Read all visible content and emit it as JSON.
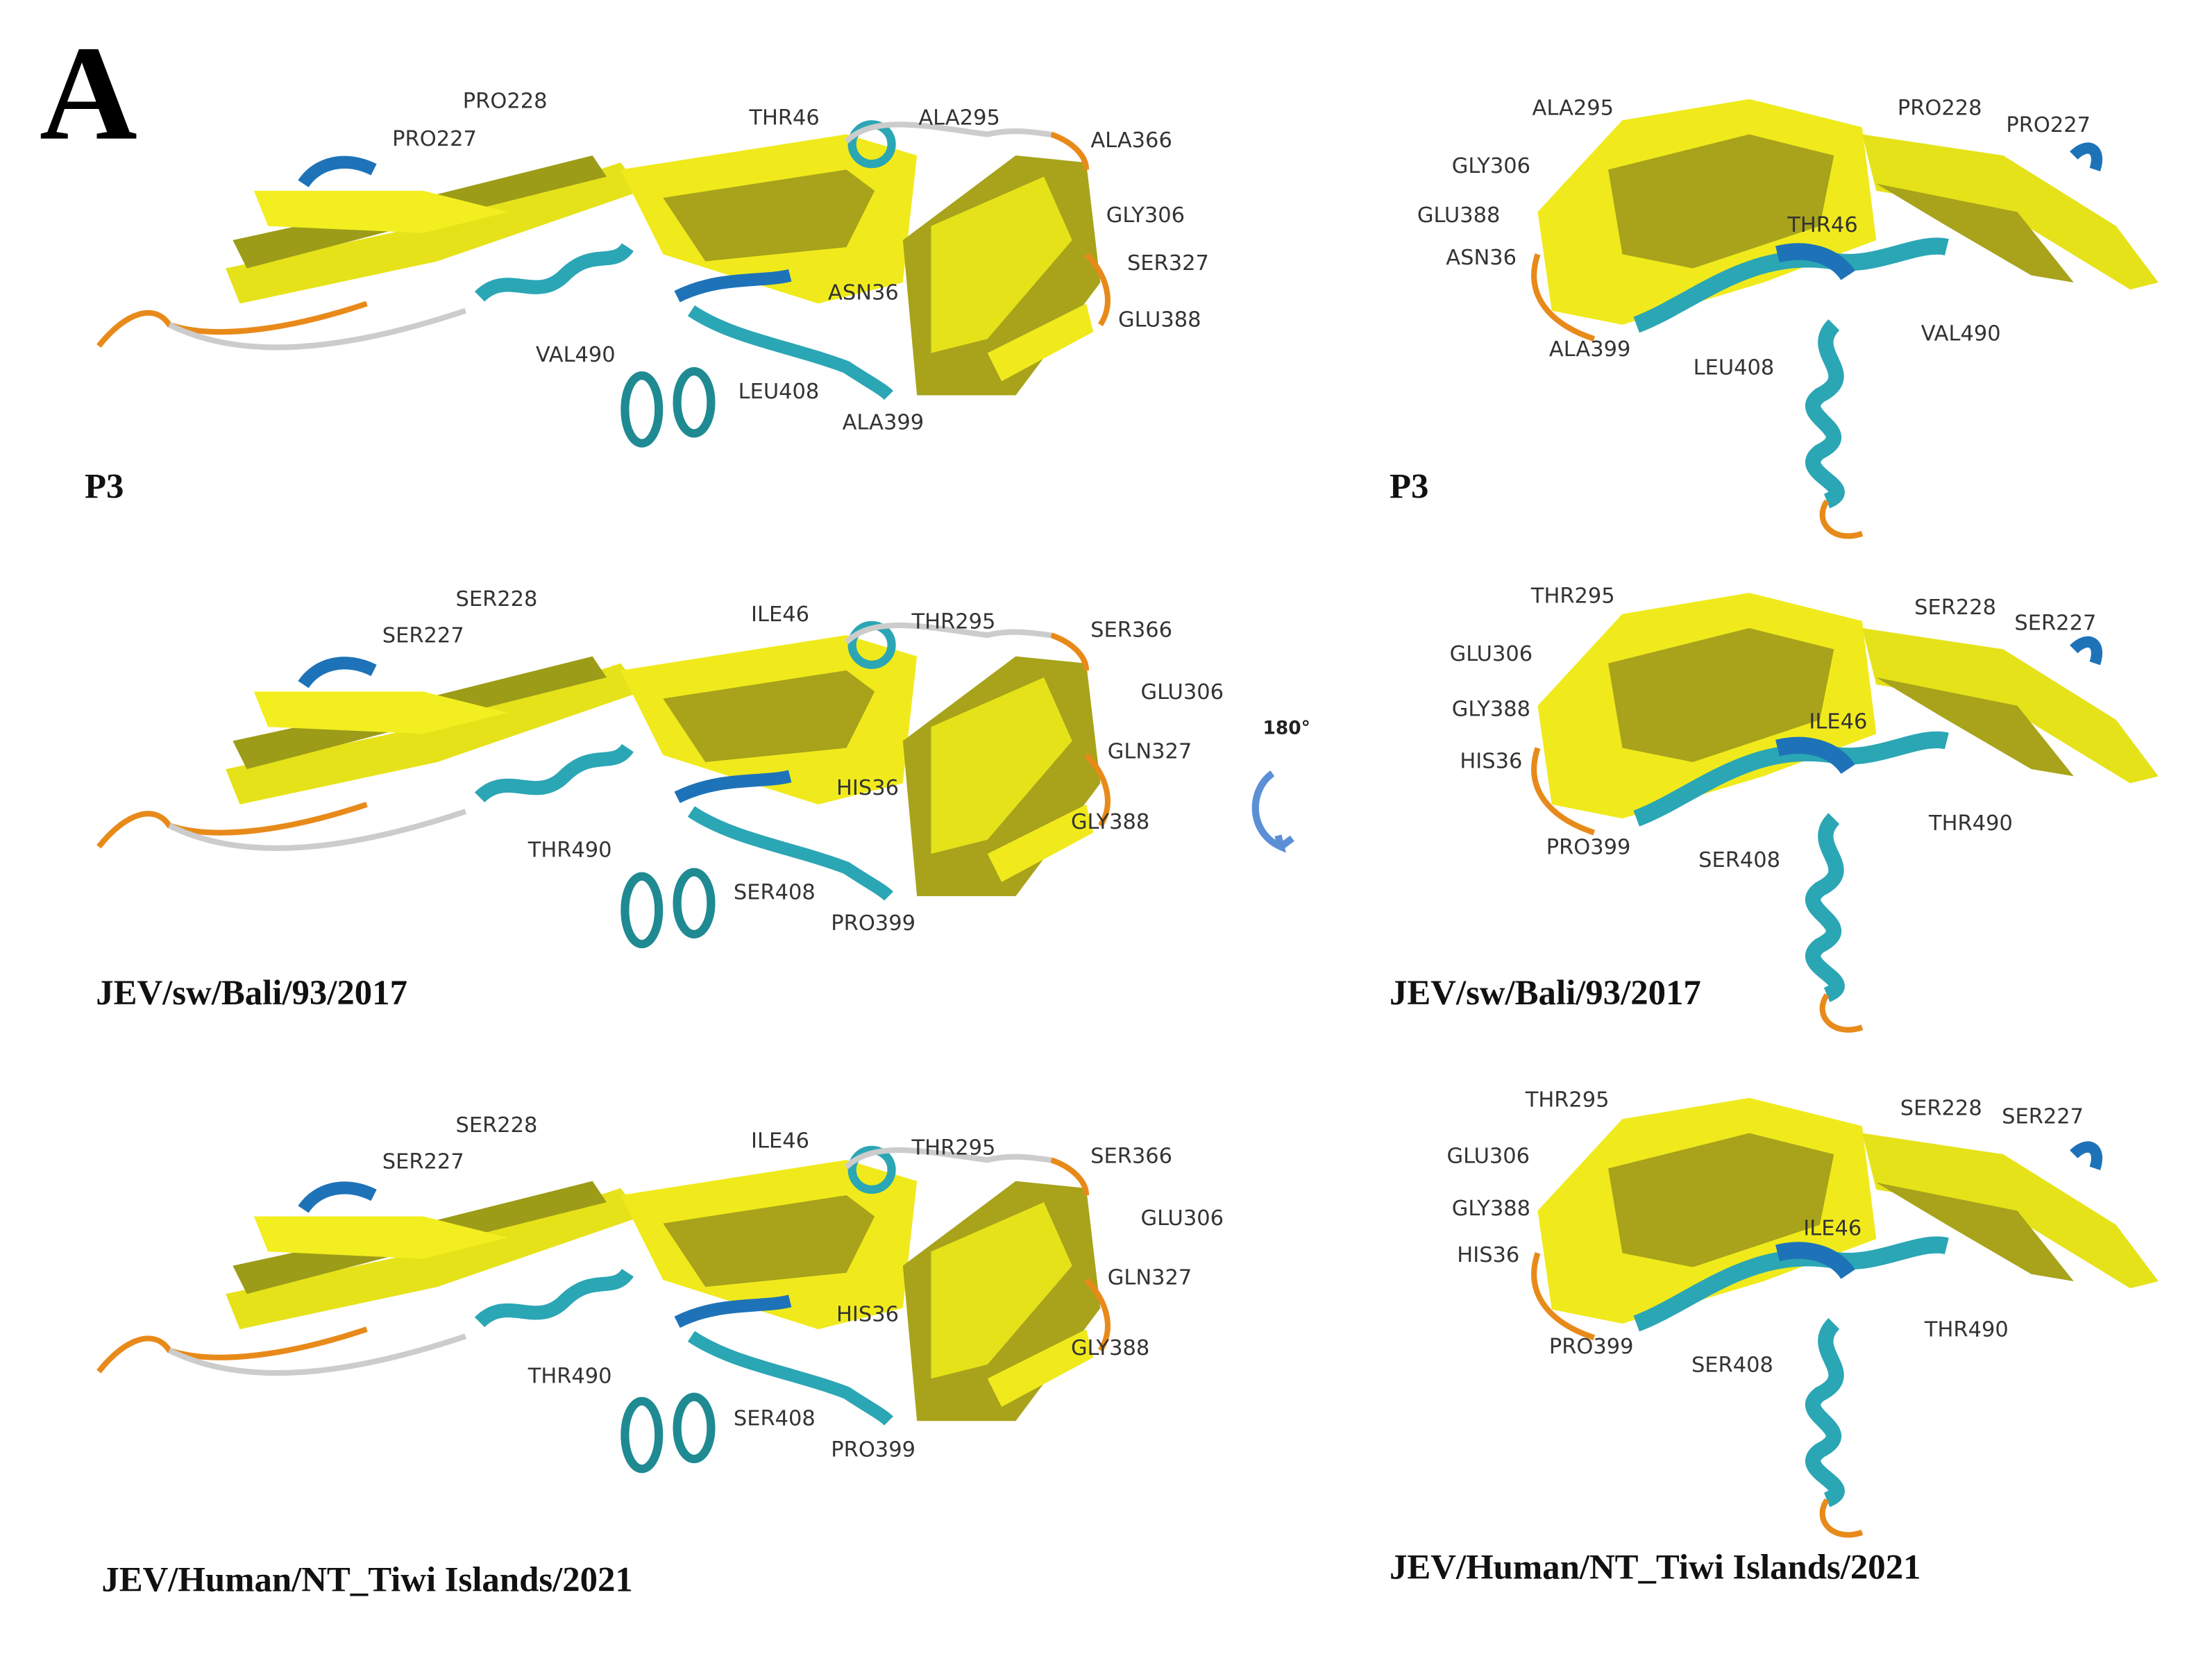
{
  "panel_label": "A",
  "rotation_label": "180°",
  "panels": [
    {
      "caption": "P3",
      "residue_labels": [
        "PRO228",
        "PRO227",
        "THR46",
        "ALA295",
        "ALA366",
        "GLY306",
        "SER327",
        "ASN36",
        "GLU388",
        "VAL490",
        "LEU408",
        "ALA399"
      ]
    },
    {
      "caption": "P3",
      "residue_labels": [
        "ALA295",
        "PRO228",
        "PRO227",
        "GLY306",
        "THR46",
        "GLU388",
        "ASN36",
        "VAL490",
        "ALA399",
        "LEU408"
      ]
    },
    {
      "caption": "JEV/sw/Bali/93/2017",
      "residue_labels": [
        "SER228",
        "SER227",
        "ILE46",
        "THR295",
        "SER366",
        "GLU306",
        "GLN327",
        "HIS36",
        "GLY388",
        "THR490",
        "SER408",
        "PRO399"
      ]
    },
    {
      "caption": "JEV/sw/Bali/93/2017",
      "residue_labels": [
        "THR295",
        "SER228",
        "SER227",
        "GLU306",
        "ILE46",
        "GLY388",
        "HIS36",
        "THR490",
        "PRO399",
        "SER408"
      ]
    },
    {
      "caption": "JEV/Human/NT_Tiwi Islands/2021",
      "residue_labels": [
        "SER228",
        "SER227",
        "ILE46",
        "THR295",
        "SER366",
        "GLU306",
        "GLN327",
        "HIS36",
        "GLY388",
        "THR490",
        "SER408",
        "PRO399"
      ]
    },
    {
      "caption": "JEV/Human/NT_Tiwi Islands/2021",
      "residue_labels": [
        "THR295",
        "SER228",
        "SER227",
        "GLU306",
        "ILE46",
        "GLY388",
        "HIS36",
        "THR490",
        "PRO399",
        "SER408"
      ]
    }
  ]
}
